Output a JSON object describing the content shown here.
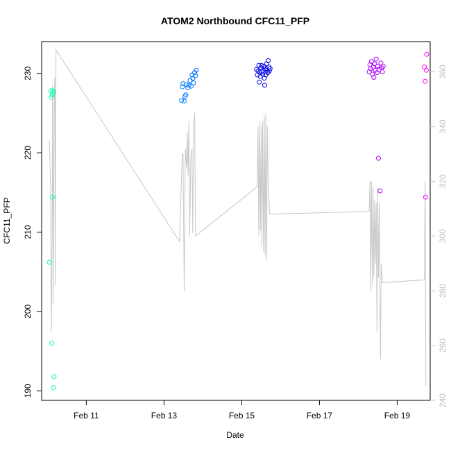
{
  "chart_data": {
    "type": "scatter",
    "title": "ATOM2 Northbound CFC11_PFP",
    "xlabel": "Date",
    "ylabel": "CFC11_PFP",
    "x_units": "days since Feb 10 00:00",
    "xlim": [
      -0.15,
      9.85
    ],
    "ylim": [
      188.8,
      234.0
    ],
    "ylim_right": [
      240.0,
      371.0
    ],
    "x_ticks": [
      {
        "value": 1,
        "label": "Feb 11"
      },
      {
        "value": 3,
        "label": "Feb 13"
      },
      {
        "value": 5,
        "label": "Feb 15"
      },
      {
        "value": 7,
        "label": "Feb 17"
      },
      {
        "value": 9,
        "label": "Feb 19"
      }
    ],
    "y_ticks": [
      190,
      200,
      210,
      220,
      230
    ],
    "y_ticks_right": [
      240,
      260,
      280,
      300,
      320,
      340,
      360
    ],
    "grid": false,
    "point_series": {
      "name": "CFC11_PFP",
      "marker": "open-circle",
      "color_scale": "cyan-blue-magenta by time",
      "points": [
        {
          "x": 0.05,
          "y": 206.2
        },
        {
          "x": 0.09,
          "y": 227.8
        },
        {
          "x": 0.1,
          "y": 227.0
        },
        {
          "x": 0.11,
          "y": 196.0
        },
        {
          "x": 0.12,
          "y": 227.3
        },
        {
          "x": 0.13,
          "y": 214.4
        },
        {
          "x": 0.14,
          "y": 227.8
        },
        {
          "x": 0.15,
          "y": 190.4
        },
        {
          "x": 0.16,
          "y": 227.6
        },
        {
          "x": 0.17,
          "y": 191.8
        },
        {
          "x": 3.45,
          "y": 226.6
        },
        {
          "x": 3.47,
          "y": 228.3
        },
        {
          "x": 3.49,
          "y": 228.7
        },
        {
          "x": 3.52,
          "y": 226.5
        },
        {
          "x": 3.54,
          "y": 227.1
        },
        {
          "x": 3.56,
          "y": 227.3
        },
        {
          "x": 3.58,
          "y": 228.6
        },
        {
          "x": 3.61,
          "y": 228.2
        },
        {
          "x": 3.64,
          "y": 228.5
        },
        {
          "x": 3.67,
          "y": 229.1
        },
        {
          "x": 3.7,
          "y": 228.4
        },
        {
          "x": 3.72,
          "y": 229.8
        },
        {
          "x": 3.74,
          "y": 229.4
        },
        {
          "x": 3.76,
          "y": 228.8
        },
        {
          "x": 3.79,
          "y": 230.1
        },
        {
          "x": 3.81,
          "y": 229.7
        },
        {
          "x": 3.83,
          "y": 230.4
        },
        {
          "x": 5.38,
          "y": 230.5
        },
        {
          "x": 5.4,
          "y": 229.8
        },
        {
          "x": 5.42,
          "y": 230.3
        },
        {
          "x": 5.44,
          "y": 231.0
        },
        {
          "x": 5.45,
          "y": 228.9
        },
        {
          "x": 5.47,
          "y": 230.1
        },
        {
          "x": 5.48,
          "y": 229.6
        },
        {
          "x": 5.5,
          "y": 230.7
        },
        {
          "x": 5.51,
          "y": 231.0
        },
        {
          "x": 5.52,
          "y": 230.2
        },
        {
          "x": 5.54,
          "y": 229.9
        },
        {
          "x": 5.55,
          "y": 230.4
        },
        {
          "x": 5.57,
          "y": 230.9
        },
        {
          "x": 5.58,
          "y": 229.4
        },
        {
          "x": 5.59,
          "y": 228.5
        },
        {
          "x": 5.61,
          "y": 230.6
        },
        {
          "x": 5.62,
          "y": 229.8
        },
        {
          "x": 5.64,
          "y": 231.2
        },
        {
          "x": 5.65,
          "y": 230.4
        },
        {
          "x": 5.67,
          "y": 230.1
        },
        {
          "x": 5.68,
          "y": 231.6
        },
        {
          "x": 5.7,
          "y": 230.8
        },
        {
          "x": 5.71,
          "y": 230.3
        },
        {
          "x": 5.73,
          "y": 230.6
        },
        {
          "x": 8.28,
          "y": 230.2
        },
        {
          "x": 8.3,
          "y": 231.1
        },
        {
          "x": 8.32,
          "y": 230.6
        },
        {
          "x": 8.34,
          "y": 231.5
        },
        {
          "x": 8.36,
          "y": 229.9
        },
        {
          "x": 8.38,
          "y": 230.8
        },
        {
          "x": 8.4,
          "y": 229.5
        },
        {
          "x": 8.42,
          "y": 231.2
        },
        {
          "x": 8.44,
          "y": 230.4
        },
        {
          "x": 8.46,
          "y": 231.8
        },
        {
          "x": 8.48,
          "y": 230.1
        },
        {
          "x": 8.5,
          "y": 230.9
        },
        {
          "x": 8.52,
          "y": 219.3
        },
        {
          "x": 8.54,
          "y": 230.5
        },
        {
          "x": 8.56,
          "y": 215.2
        },
        {
          "x": 8.58,
          "y": 231.3
        },
        {
          "x": 8.6,
          "y": 230.7
        },
        {
          "x": 8.62,
          "y": 230.2
        },
        {
          "x": 8.64,
          "y": 230.9
        },
        {
          "x": 9.7,
          "y": 230.8
        },
        {
          "x": 9.72,
          "y": 229.0
        },
        {
          "x": 9.73,
          "y": 214.4
        },
        {
          "x": 9.75,
          "y": 230.4
        },
        {
          "x": 9.76,
          "y": 232.4
        }
      ]
    },
    "line_series": {
      "name": "right axis series",
      "color": "#c8c8c8",
      "axis": "right",
      "points": [
        [
          0.05,
          335
        ],
        [
          0.08,
          318
        ],
        [
          0.1,
          265
        ],
        [
          0.12,
          300
        ],
        [
          0.13,
          355
        ],
        [
          0.15,
          275
        ],
        [
          0.17,
          345
        ],
        [
          0.19,
          358
        ],
        [
          0.2,
          282
        ],
        [
          0.22,
          368
        ],
        [
          3.4,
          298
        ],
        [
          3.47,
          330
        ],
        [
          3.49,
          330
        ],
        [
          3.52,
          280
        ],
        [
          3.55,
          332
        ],
        [
          3.58,
          325
        ],
        [
          3.6,
          338
        ],
        [
          3.62,
          322
        ],
        [
          3.64,
          342
        ],
        [
          3.66,
          300
        ],
        [
          3.69,
          328
        ],
        [
          3.72,
          332
        ],
        [
          3.74,
          301
        ],
        [
          3.76,
          340
        ],
        [
          3.79,
          345
        ],
        [
          3.81,
          300
        ],
        [
          5.4,
          318
        ],
        [
          5.42,
          340
        ],
        [
          5.44,
          300
        ],
        [
          5.46,
          342
        ],
        [
          5.48,
          302
        ],
        [
          5.5,
          340
        ],
        [
          5.52,
          296
        ],
        [
          5.54,
          342
        ],
        [
          5.56,
          294
        ],
        [
          5.58,
          344
        ],
        [
          5.6,
          293
        ],
        [
          5.62,
          345
        ],
        [
          5.64,
          291
        ],
        [
          5.66,
          340
        ],
        [
          5.68,
          320
        ],
        [
          5.72,
          308
        ],
        [
          8.28,
          309
        ],
        [
          8.3,
          320
        ],
        [
          8.32,
          280
        ],
        [
          8.34,
          320
        ],
        [
          8.36,
          282
        ],
        [
          8.38,
          318
        ],
        [
          8.4,
          285
        ],
        [
          8.42,
          313
        ],
        [
          8.44,
          290
        ],
        [
          8.46,
          312
        ],
        [
          8.48,
          265
        ],
        [
          8.5,
          318
        ],
        [
          8.52,
          285
        ],
        [
          8.54,
          312
        ],
        [
          8.57,
          255
        ],
        [
          8.59,
          290
        ],
        [
          8.62,
          283
        ],
        [
          9.7,
          284
        ],
        [
          9.72,
          320
        ],
        [
          9.74,
          245
        ]
      ]
    }
  }
}
